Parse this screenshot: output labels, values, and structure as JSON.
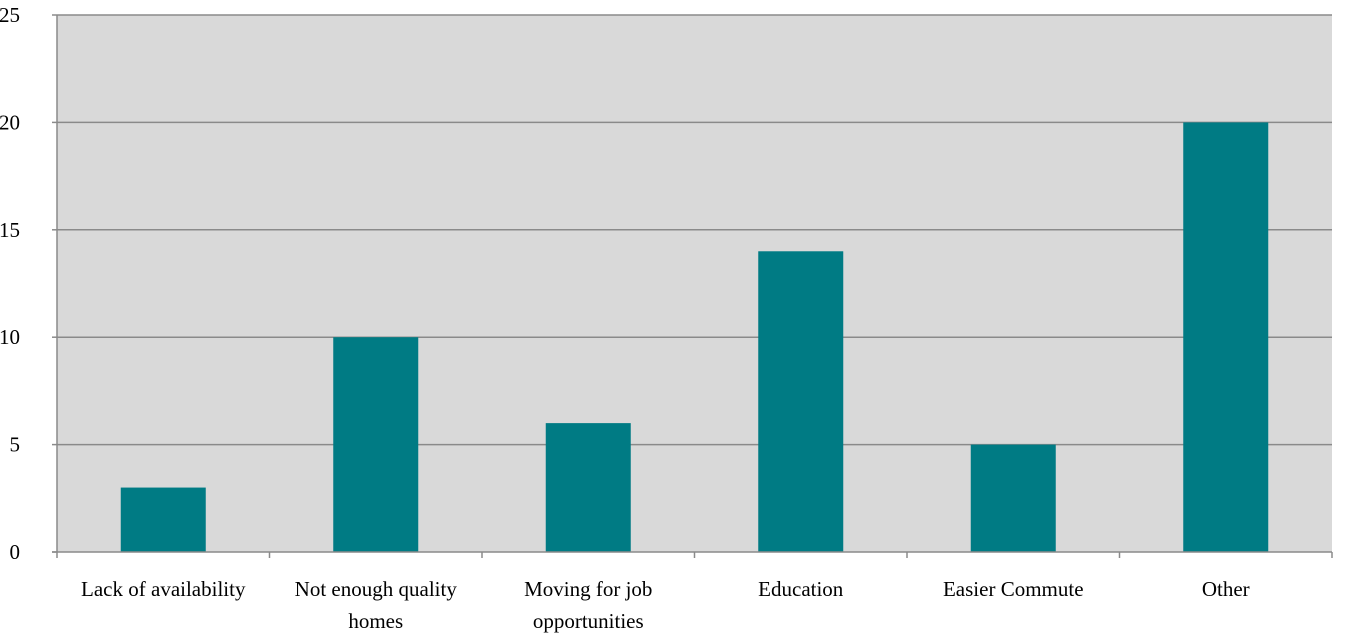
{
  "chart_data": {
    "type": "bar",
    "title": "",
    "xlabel": "",
    "ylabel": "",
    "categories": [
      "Lack of availability",
      "Not enough quality homes",
      "Moving for job opportunities",
      "Education",
      "Easier Commute",
      "Other"
    ],
    "category_lines": [
      [
        "Lack of availability"
      ],
      [
        "Not enough quality",
        "homes"
      ],
      [
        "Moving for job",
        "opportunities"
      ],
      [
        "Education"
      ],
      [
        "Easier Commute"
      ],
      [
        "Other"
      ]
    ],
    "values": [
      3,
      10,
      6,
      14,
      5,
      20
    ],
    "ylim": [
      0,
      25
    ],
    "yticks": [
      0,
      5,
      10,
      15,
      20,
      25
    ],
    "grid": true,
    "legend": "none",
    "colors": {
      "bar": "#007b84",
      "plot_background": "#d9d9d9",
      "grid": "#8a8a8a",
      "axis": "#8a8a8a"
    }
  }
}
